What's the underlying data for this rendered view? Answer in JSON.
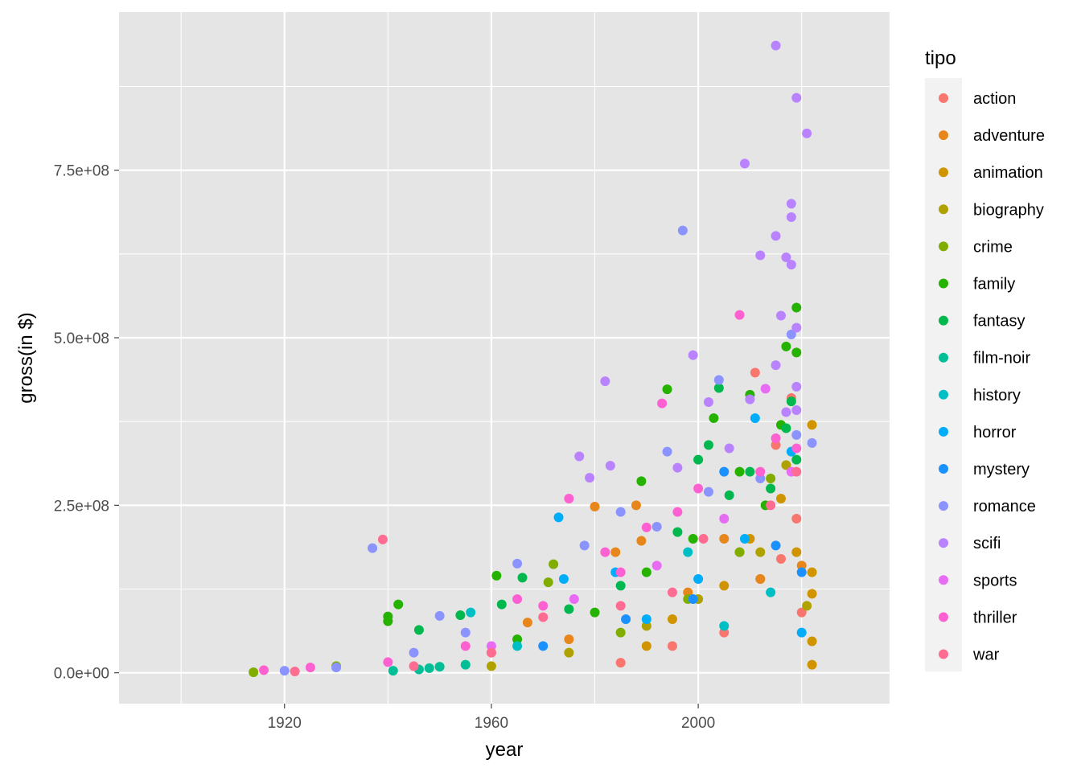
{
  "chart_data": {
    "type": "scatter",
    "xlabel": "year",
    "ylabel": "gross(in $)",
    "xlim": [
      1888,
      2037
    ],
    "ylim": [
      -46000000,
      986000000
    ],
    "x_ticks": [
      {
        "value": 1920,
        "label": "1920"
      },
      {
        "value": 1960,
        "label": "1960"
      },
      {
        "value": 2000,
        "label": "2000"
      }
    ],
    "y_ticks": [
      {
        "value": 0,
        "label": "0.0e+00"
      },
      {
        "value": 250000000,
        "label": "2.5e+08"
      },
      {
        "value": 500000000,
        "label": "5.0e+08"
      },
      {
        "value": 750000000,
        "label": "7.5e+08"
      }
    ],
    "grid": true,
    "panel_background": "#e5e5e5",
    "grid_color": "#ffffff",
    "legend": {
      "title": "tipo",
      "position": "right",
      "entries": [
        {
          "name": "action",
          "color": "#F8766D"
        },
        {
          "name": "adventure",
          "color": "#E7861B"
        },
        {
          "name": "animation",
          "color": "#CF9400"
        },
        {
          "name": "biography",
          "color": "#AFA100"
        },
        {
          "name": "crime",
          "color": "#81AD00"
        },
        {
          "name": "family",
          "color": "#25B200"
        },
        {
          "name": "fantasy",
          "color": "#00B84E"
        },
        {
          "name": "film-noir",
          "color": "#00BF96"
        },
        {
          "name": "history",
          "color": "#00BFC4"
        },
        {
          "name": "horror",
          "color": "#00ADFA"
        },
        {
          "name": "mystery",
          "color": "#1A91FF"
        },
        {
          "name": "romance",
          "color": "#8B93FF"
        },
        {
          "name": "scifi",
          "color": "#B983FF"
        },
        {
          "name": "sports",
          "color": "#E76BF3"
        },
        {
          "name": "thriller",
          "color": "#FD61D1"
        },
        {
          "name": "war",
          "color": "#FF6C91"
        }
      ]
    },
    "series": [
      {
        "name": "action",
        "points": [
          [
            2011,
            448000000
          ],
          [
            2018,
            410000000
          ],
          [
            2015,
            340000000
          ],
          [
            2019,
            230000000
          ],
          [
            2008,
            180000000
          ],
          [
            2016,
            170000000
          ],
          [
            2012,
            140000000
          ],
          [
            2020,
            90000000
          ],
          [
            2005,
            60000000
          ],
          [
            1995,
            40000000
          ],
          [
            1985,
            15000000
          ]
        ]
      },
      {
        "name": "adventure",
        "points": [
          [
            1980,
            248000000
          ],
          [
            1988,
            250000000
          ],
          [
            1967,
            75000000
          ],
          [
            1989,
            197000000
          ],
          [
            1984,
            180000000
          ],
          [
            2020,
            160000000
          ],
          [
            2012,
            140000000
          ],
          [
            2005,
            200000000
          ],
          [
            1998,
            120000000
          ],
          [
            1975,
            50000000
          ],
          [
            1960,
            30000000
          ]
        ]
      },
      {
        "name": "animation",
        "points": [
          [
            2022,
            370000000
          ],
          [
            2022,
            150000000
          ],
          [
            2022,
            118000000
          ],
          [
            2022,
            47000000
          ],
          [
            2022,
            12000000
          ],
          [
            2019,
            180000000
          ],
          [
            2016,
            260000000
          ],
          [
            2010,
            200000000
          ],
          [
            2005,
            130000000
          ],
          [
            1995,
            80000000
          ],
          [
            1990,
            40000000
          ]
        ]
      },
      {
        "name": "biography",
        "points": [
          [
            2017,
            310000000
          ],
          [
            2021,
            100000000
          ],
          [
            2012,
            180000000
          ],
          [
            2000,
            110000000
          ],
          [
            1990,
            70000000
          ],
          [
            1975,
            30000000
          ],
          [
            1960,
            10000000
          ]
        ]
      },
      {
        "name": "crime",
        "points": [
          [
            1972,
            162000000
          ],
          [
            1971,
            135000000
          ],
          [
            2014,
            290000000
          ],
          [
            2008,
            180000000
          ],
          [
            1998,
            110000000
          ],
          [
            1985,
            60000000
          ],
          [
            1930,
            10000000
          ],
          [
            1914,
            800000
          ]
        ]
      },
      {
        "name": "family",
        "points": [
          [
            2019,
            545000000
          ],
          [
            2017,
            487000000
          ],
          [
            2019,
            478000000
          ],
          [
            2016,
            370000000
          ],
          [
            2010,
            415000000
          ],
          [
            1994,
            423000000
          ],
          [
            1989,
            286000000
          ],
          [
            1961,
            145000000
          ],
          [
            1942,
            102000000
          ],
          [
            1940,
            84000000
          ],
          [
            1940,
            77000000
          ],
          [
            2003,
            380000000
          ],
          [
            2008,
            300000000
          ],
          [
            1999,
            200000000
          ],
          [
            1990,
            150000000
          ],
          [
            1980,
            90000000
          ],
          [
            1965,
            50000000
          ],
          [
            2013,
            250000000
          ]
        ]
      },
      {
        "name": "fantasy",
        "points": [
          [
            2018,
            405000000
          ],
          [
            2017,
            365000000
          ],
          [
            2004,
            425000000
          ],
          [
            2002,
            340000000
          ],
          [
            2000,
            318000000
          ],
          [
            1966,
            142000000
          ],
          [
            1954,
            86000000
          ],
          [
            1946,
            64000000
          ],
          [
            2014,
            275000000
          ],
          [
            2019,
            318000000
          ],
          [
            2010,
            300000000
          ],
          [
            2006,
            265000000
          ],
          [
            1996,
            210000000
          ],
          [
            1985,
            130000000
          ],
          [
            1975,
            95000000
          ],
          [
            1962,
            102000000
          ]
        ]
      },
      {
        "name": "film-noir",
        "points": [
          [
            1950,
            9000000
          ],
          [
            1946,
            5000000
          ],
          [
            1941,
            3000000
          ],
          [
            1955,
            12000000
          ],
          [
            1948,
            7000000
          ]
        ]
      },
      {
        "name": "history",
        "points": [
          [
            1956,
            90000000
          ],
          [
            1998,
            180000000
          ],
          [
            2014,
            120000000
          ],
          [
            1965,
            40000000
          ],
          [
            2005,
            70000000
          ]
        ]
      },
      {
        "name": "horror",
        "points": [
          [
            1973,
            232000000
          ],
          [
            1974,
            140000000
          ],
          [
            2011,
            380000000
          ],
          [
            2018,
            330000000
          ],
          [
            2009,
            200000000
          ],
          [
            2000,
            140000000
          ],
          [
            1984,
            150000000
          ],
          [
            1990,
            80000000
          ],
          [
            2020,
            60000000
          ]
        ]
      },
      {
        "name": "mystery",
        "points": [
          [
            2015,
            190000000
          ],
          [
            2005,
            300000000
          ],
          [
            1999,
            110000000
          ],
          [
            1986,
            80000000
          ],
          [
            1970,
            40000000
          ],
          [
            2020,
            150000000
          ]
        ]
      },
      {
        "name": "romance",
        "points": [
          [
            1937,
            186000000
          ],
          [
            1997,
            660000000
          ],
          [
            2004,
            437000000
          ],
          [
            2018,
            505000000
          ],
          [
            2022,
            343000000
          ],
          [
            1994,
            330000000
          ],
          [
            1965,
            163000000
          ],
          [
            1950,
            85000000
          ],
          [
            1978,
            190000000
          ],
          [
            1992,
            218000000
          ],
          [
            2012,
            290000000
          ],
          [
            2019,
            355000000
          ],
          [
            1985,
            240000000
          ],
          [
            2002,
            270000000
          ],
          [
            1955,
            60000000
          ],
          [
            1945,
            30000000
          ],
          [
            1930,
            8000000
          ],
          [
            1920,
            3000000
          ]
        ]
      },
      {
        "name": "scifi",
        "points": [
          [
            2015,
            936000000
          ],
          [
            2019,
            858000000
          ],
          [
            2021,
            805000000
          ],
          [
            2009,
            760000000
          ],
          [
            2018,
            700000000
          ],
          [
            2018,
            680000000
          ],
          [
            2015,
            652000000
          ],
          [
            2012,
            623000000
          ],
          [
            2017,
            620000000
          ],
          [
            2018,
            609000000
          ],
          [
            2016,
            533000000
          ],
          [
            2019,
            515000000
          ],
          [
            1999,
            474000000
          ],
          [
            2015,
            459000000
          ],
          [
            2019,
            427000000
          ],
          [
            1982,
            435000000
          ],
          [
            1977,
            323000000
          ],
          [
            1983,
            309000000
          ],
          [
            1979,
            291000000
          ],
          [
            2002,
            404000000
          ],
          [
            2010,
            408000000
          ],
          [
            2017,
            389000000
          ],
          [
            2019,
            392000000
          ],
          [
            2006,
            335000000
          ],
          [
            1996,
            306000000
          ]
        ]
      },
      {
        "name": "sports",
        "points": [
          [
            2013,
            424000000
          ],
          [
            2018,
            300000000
          ],
          [
            2005,
            230000000
          ],
          [
            1992,
            160000000
          ],
          [
            1976,
            110000000
          ],
          [
            1960,
            40000000
          ]
        ]
      },
      {
        "name": "thriller",
        "points": [
          [
            2008,
            534000000
          ],
          [
            1993,
            402000000
          ],
          [
            1975,
            260000000
          ],
          [
            2015,
            350000000
          ],
          [
            2012,
            300000000
          ],
          [
            2019,
            335000000
          ],
          [
            2000,
            275000000
          ],
          [
            1996,
            240000000
          ],
          [
            1990,
            217000000
          ],
          [
            1985,
            150000000
          ],
          [
            1982,
            180000000
          ],
          [
            1970,
            100000000
          ],
          [
            1965,
            110000000
          ],
          [
            1955,
            40000000
          ],
          [
            1916,
            4000000
          ],
          [
            1925,
            8000000
          ],
          [
            1940,
            16000000
          ]
        ]
      },
      {
        "name": "war",
        "points": [
          [
            1939,
            199000000
          ],
          [
            2019,
            300000000
          ],
          [
            2014,
            250000000
          ],
          [
            2001,
            200000000
          ],
          [
            1995,
            120000000
          ],
          [
            1985,
            100000000
          ],
          [
            1970,
            83000000
          ],
          [
            1960,
            30000000
          ],
          [
            1945,
            10000000
          ],
          [
            1922,
            2000000
          ]
        ]
      }
    ]
  }
}
